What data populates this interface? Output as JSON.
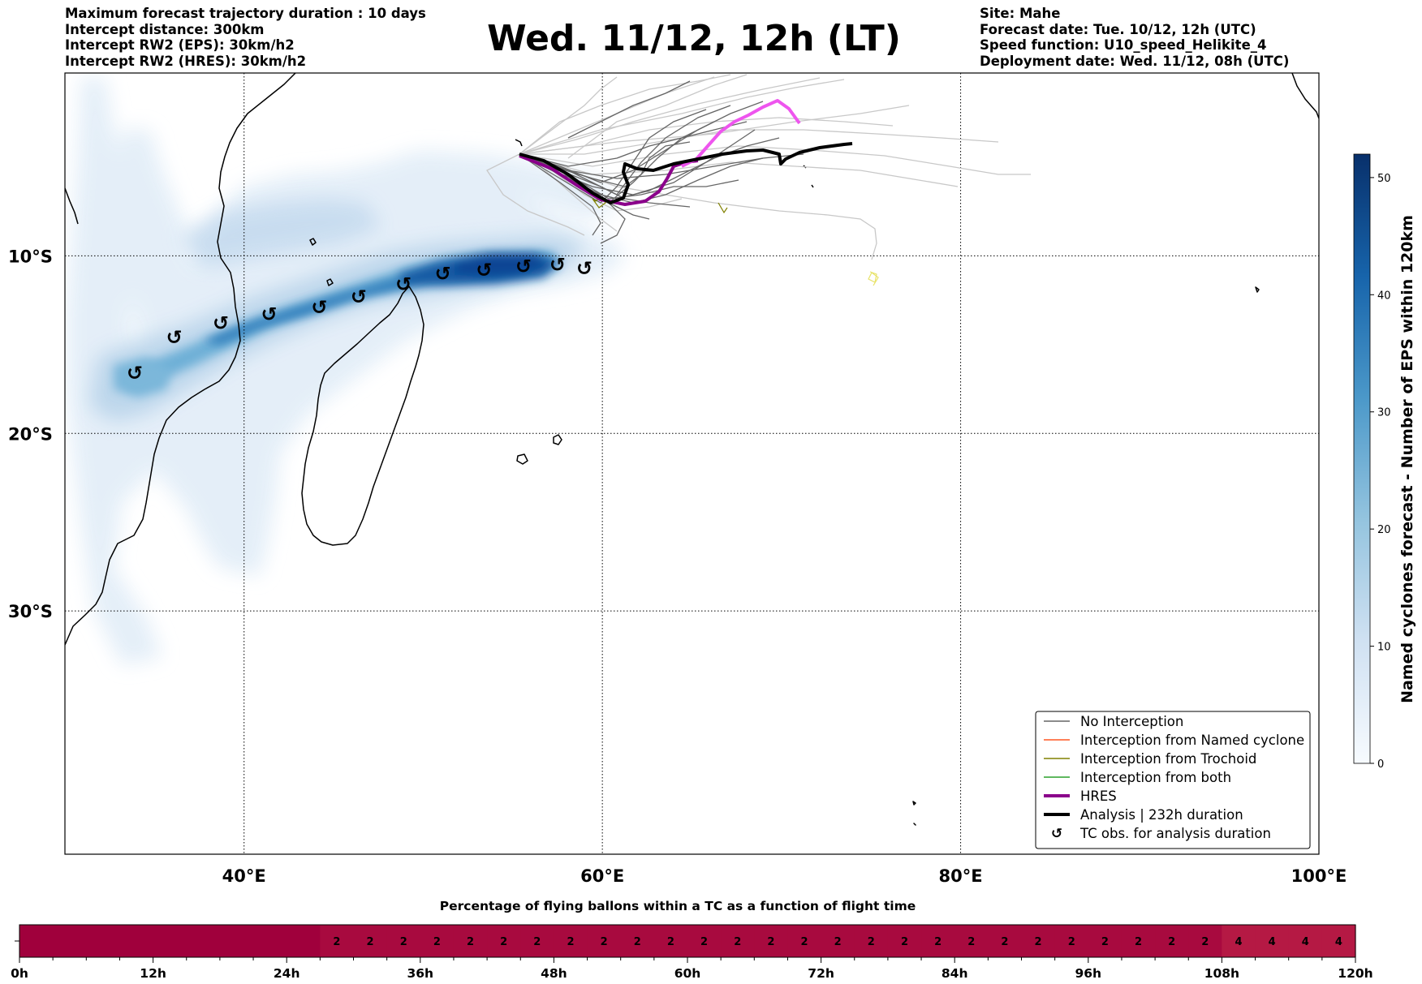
{
  "header": {
    "left_lines": [
      "Maximum forecast trajectory duration : 10 days",
      "Intercept distance: 300km",
      "Intercept RW2 (EPS):  30km/h2",
      "Intercept RW2 (HRES): 30km/h2"
    ],
    "title": "Wed. 11/12, 12h (LT)",
    "right_lines": [
      "Site: Mahe",
      "Forecast date: Tue. 10/12, 12h (UTC)",
      "Speed function: U10_speed_Helikite_4",
      "Deployment date: Wed. 11/12, 08h (UTC)"
    ]
  },
  "map": {
    "lon_range": [
      30,
      100
    ],
    "lat_range": [
      -43.7,
      0.3
    ],
    "lon_ticks": [
      {
        "value": 40,
        "label": "40°E"
      },
      {
        "value": 60,
        "label": "60°E"
      },
      {
        "value": 80,
        "label": "80°E"
      },
      {
        "value": 100,
        "label": "100°E"
      }
    ],
    "lat_ticks": [
      {
        "value": -10,
        "label": "10°S"
      },
      {
        "value": -20,
        "label": "20°S"
      },
      {
        "value": -30,
        "label": "30°S"
      }
    ],
    "gridlines": "dotted",
    "colors": {
      "no_interception": "#666666",
      "named_cyclone": "#ff5722",
      "trochoid": "#808000",
      "both": "#2ca02c",
      "hres": "#8b008b",
      "hres_late": "#ee55ee",
      "analysis": "#000000",
      "ensemble_light": "#c8c8c8"
    }
  },
  "tc_obs_symbol": "↺",
  "tc_obs_points": [
    [
      33.9,
      -16.6
    ],
    [
      36.1,
      -14.6
    ],
    [
      38.7,
      -13.8
    ],
    [
      41.4,
      -13.3
    ],
    [
      44.2,
      -12.9
    ],
    [
      46.4,
      -12.3
    ],
    [
      48.9,
      -11.6
    ],
    [
      51.1,
      -11.0
    ],
    [
      53.4,
      -10.8
    ],
    [
      55.6,
      -10.6
    ],
    [
      57.5,
      -10.5
    ],
    [
      59.0,
      -10.7
    ]
  ],
  "legend": {
    "placement": "lower-right",
    "items": [
      {
        "label": "No Interception",
        "style": "thin",
        "color": "#666666"
      },
      {
        "label": "Interception from Named cyclone",
        "style": "thin",
        "color": "#ff5722"
      },
      {
        "label": "Interception from Trochoid",
        "style": "thin",
        "color": "#808000"
      },
      {
        "label": "Interception from both",
        "style": "thin",
        "color": "#2ca02c"
      },
      {
        "label": "HRES",
        "style": "thick",
        "color": "#8b008b"
      },
      {
        "label": "Analysis | 232h duration",
        "style": "thick",
        "color": "#000000"
      },
      {
        "label": "TC obs. for analysis duration",
        "style": "symbol",
        "color": "#000000"
      }
    ]
  },
  "colorbar": {
    "label": "Named cyclones forecast - Number of EPS within 120km",
    "min": 0,
    "max": 52,
    "ticks": [
      0,
      10,
      20,
      30,
      40,
      50
    ],
    "cmap_low": "#f7fbff",
    "cmap_high": "#08306b"
  },
  "balloon_bar": {
    "title": "Percentage of flying ballons within a TC as a function of flight time",
    "max_hours": 120,
    "ticks": [
      "0h",
      "12h",
      "24h",
      "36h",
      "48h",
      "60h",
      "72h",
      "84h",
      "96h",
      "108h",
      "120h"
    ],
    "cell_hours": 3,
    "values": [
      0,
      0,
      0,
      0,
      0,
      0,
      0,
      0,
      0,
      2,
      2,
      2,
      2,
      2,
      2,
      2,
      2,
      2,
      2,
      2,
      2,
      2,
      2,
      2,
      2,
      2,
      2,
      2,
      2,
      2,
      2,
      2,
      2,
      2,
      2,
      2,
      4,
      4,
      4,
      4
    ],
    "color_zero": "#a0003c",
    "color_two": "#a80a3f",
    "color_four": "#b51944"
  }
}
